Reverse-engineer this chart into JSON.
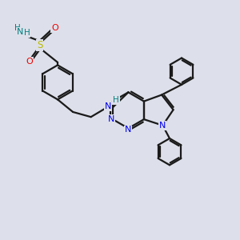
{
  "bg_color": "#dde0ea",
  "bond_color": "#1a1a1a",
  "N_color": "#0000ee",
  "S_color": "#bbbb00",
  "O_color": "#ee0000",
  "H_color": "#008080",
  "lw": 1.6,
  "xlim": [
    0.0,
    8.5
  ],
  "ylim": [
    -1.5,
    6.5
  ]
}
